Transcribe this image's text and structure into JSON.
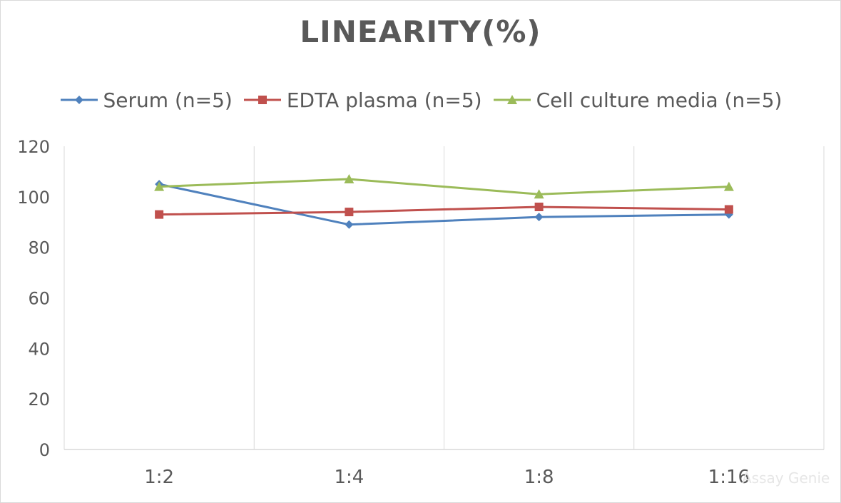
{
  "chart_data": {
    "type": "line",
    "title": "LINEARITY(%)",
    "categories": [
      "1:2",
      "1:4",
      "1:8",
      "1:16"
    ],
    "ylim": [
      0,
      120
    ],
    "yticks": [
      0,
      20,
      40,
      60,
      80,
      100,
      120
    ],
    "grid": "vertical",
    "legend_position": "top",
    "series": [
      {
        "name": "Serum (n=5)",
        "color": "#4f81bd",
        "marker": "diamond",
        "values": [
          105,
          89,
          92,
          93
        ]
      },
      {
        "name": "EDTA plasma (n=5)",
        "color": "#c0504d",
        "marker": "square",
        "values": [
          93,
          94,
          96,
          95
        ]
      },
      {
        "name": "Cell culture media (n=5)",
        "color": "#9bbb59",
        "marker": "triangle",
        "values": [
          104,
          107,
          101,
          104
        ]
      }
    ]
  },
  "watermark": "Assay Genie"
}
